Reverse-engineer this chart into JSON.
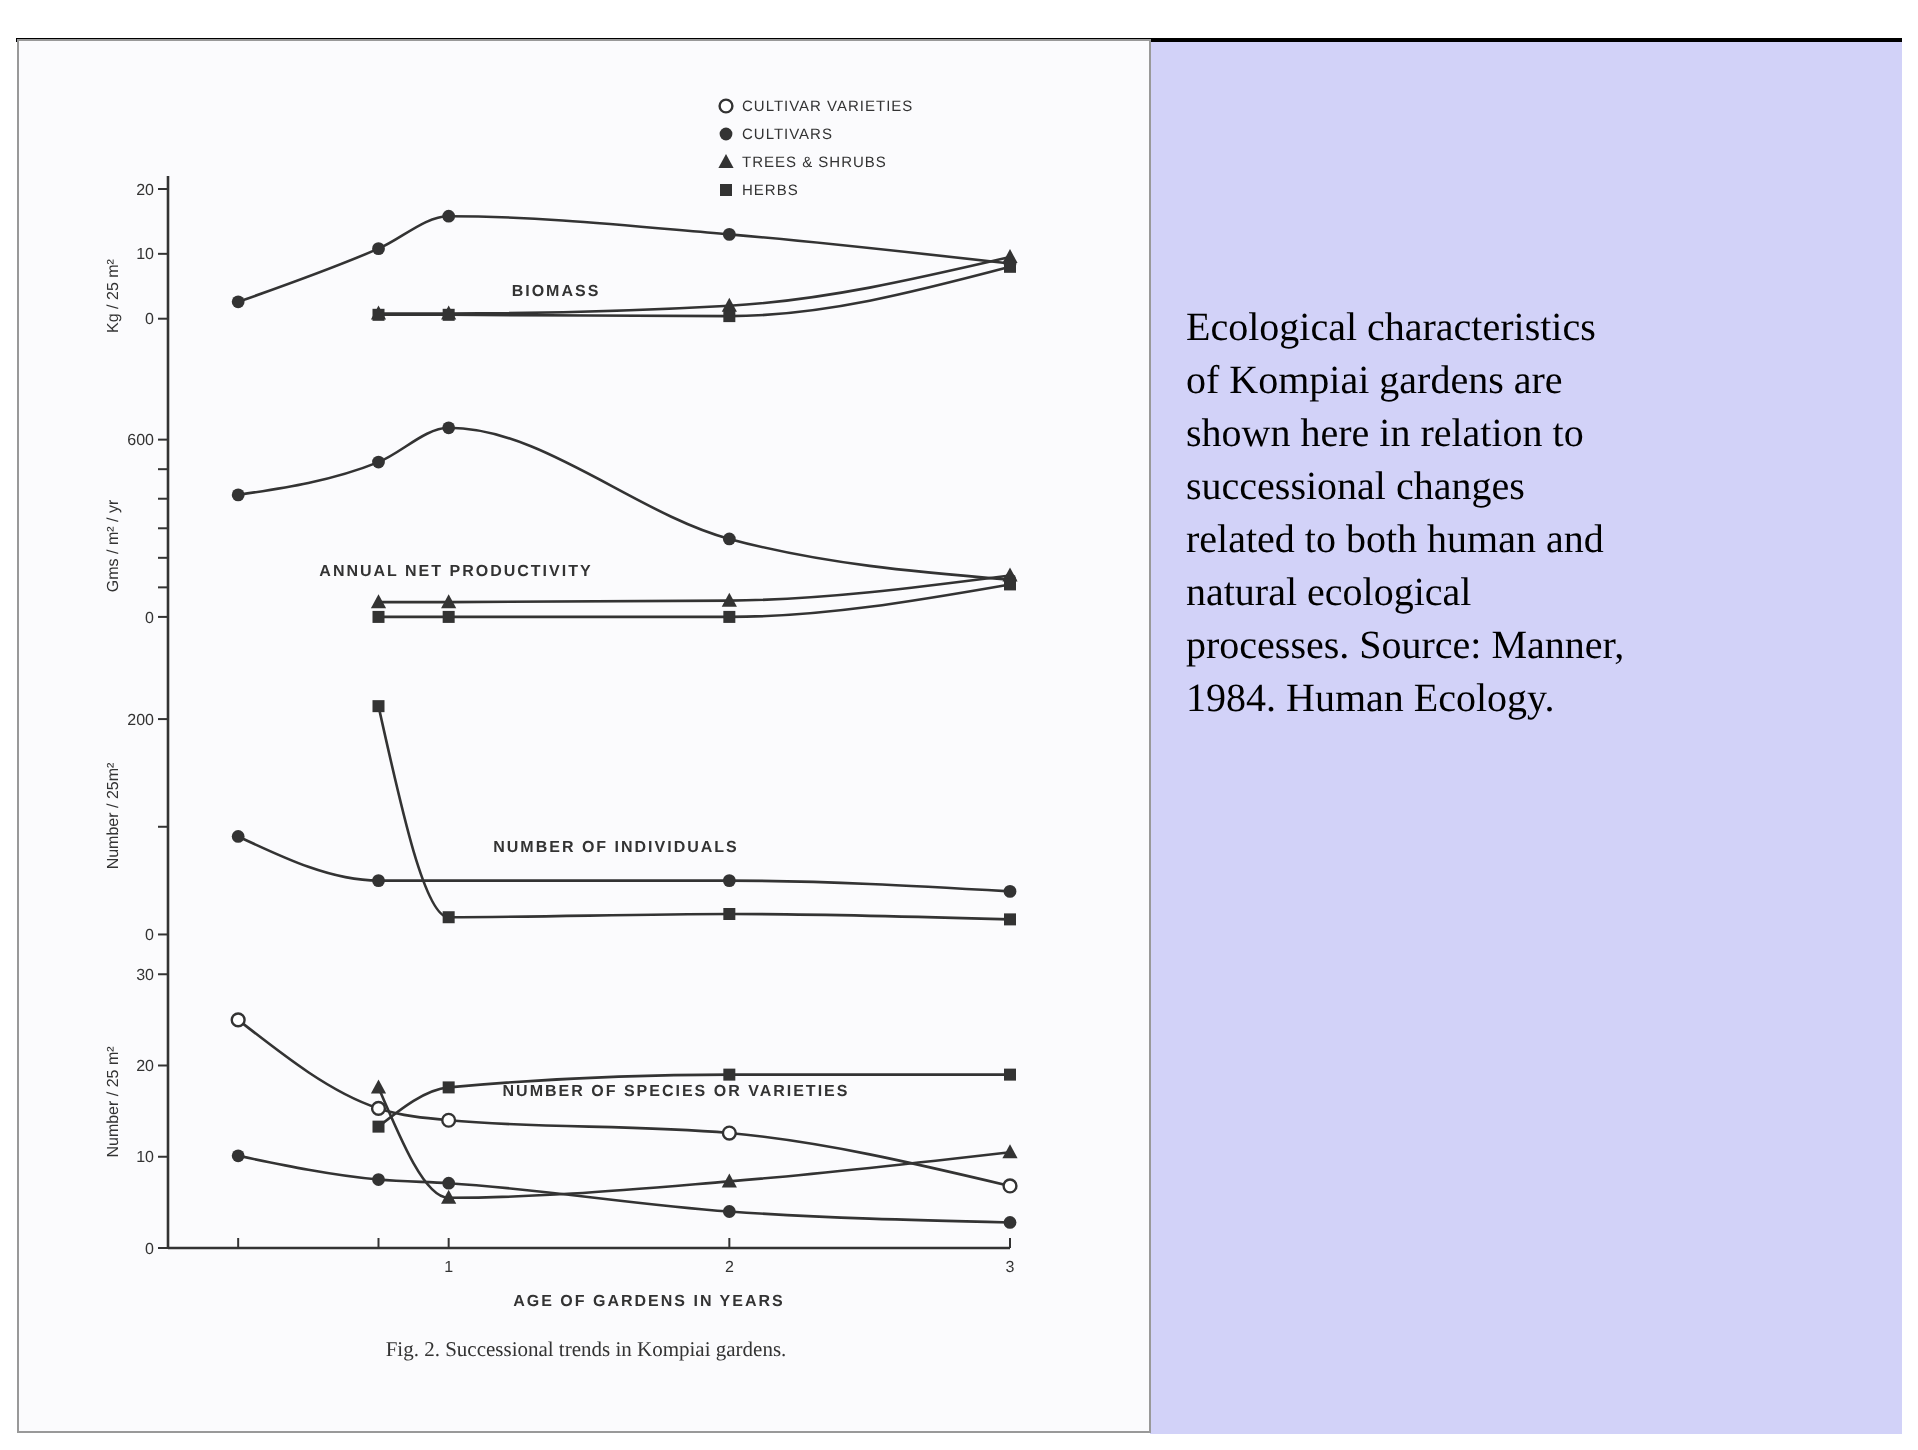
{
  "chart_data": [
    {
      "type": "line",
      "title": "BIOMASS",
      "ylabel": "Kg / 25 m²",
      "xlim": [
        0,
        3
      ],
      "ylim": [
        -15,
        22
      ],
      "yticks": [
        0,
        10,
        20
      ],
      "tick_labels": "y",
      "legend": "top right",
      "grid": false,
      "series": [
        {
          "name": "CULTIVAR VARIETIES",
          "color": "#333333",
          "marker": "open-circle"
        },
        {
          "name": "CULTIVARS",
          "color": "#333333",
          "marker": "circle",
          "x": [
            0.25,
            0.75,
            1,
            2,
            3
          ],
          "values": [
            2.6,
            10.8,
            15.8,
            13,
            8.5
          ]
        },
        {
          "name": "TREES & SHRUBS",
          "color": "#333333",
          "marker": "triangle",
          "x": [
            0.75,
            1,
            2,
            3
          ],
          "values": [
            0.8,
            0.8,
            2,
            9.5
          ]
        },
        {
          "name": "HERBS",
          "color": "#333333",
          "marker": "square",
          "x": [
            0.75,
            1,
            2,
            3
          ],
          "values": [
            0.6,
            0.6,
            0.4,
            8
          ]
        }
      ]
    },
    {
      "type": "line",
      "title": "ANNUAL NET PRODUCTIVITY",
      "ylabel": "Gms / m² / yr",
      "xlim": [
        0,
        3
      ],
      "ylim": [
        -200,
        680
      ],
      "yticks": [
        0,
        {
          "value": 100,
          "label": null
        },
        {
          "value": 200,
          "label": null
        },
        {
          "value": 300,
          "label": null
        },
        {
          "value": 400,
          "label": null
        },
        {
          "value": 500,
          "label": null
        },
        600
      ],
      "tick_labels": "y",
      "series": [
        {
          "color": "#333333",
          "marker": "circle",
          "x": [
            0.25,
            0.75,
            1,
            2,
            3
          ],
          "values": [
            413,
            524,
            640,
            264,
            126
          ]
        },
        {
          "color": "#333333",
          "marker": "triangle",
          "x": [
            0.75,
            1,
            2,
            3
          ],
          "values": [
            50,
            50,
            55,
            140
          ]
        },
        {
          "color": "#333333",
          "marker": "square",
          "x": [
            0.75,
            1,
            2,
            3
          ],
          "values": [
            0,
            0,
            0,
            110
          ]
        }
      ]
    },
    {
      "type": "line",
      "title": "NUMBER OF INDIVIDUALS",
      "ylabel": "Number / 25m²",
      "xlim": [
        0,
        3
      ],
      "ylim": [
        -20,
        240
      ],
      "yticks": [
        0,
        {
          "value": 100,
          "label": null
        },
        200
      ],
      "tick_labels": "y",
      "series": [
        {
          "color": "#333333",
          "marker": "circle",
          "x": [
            0.25,
            0.75,
            2,
            3
          ],
          "values": [
            91,
            50,
            50,
            40
          ]
        },
        {
          "color": "#333333",
          "marker": "square",
          "x": [
            0.75,
            1,
            2,
            3
          ],
          "values": [
            212,
            16,
            19,
            14
          ]
        }
      ]
    },
    {
      "type": "line",
      "title": "NUMBER OF SPECIES OR VARIETIES",
      "ylabel": "Number / 25 m²",
      "xlabel": "AGE OF GARDENS IN YEARS",
      "xlim": [
        0,
        3
      ],
      "xticks": [
        {
          "value": 0.25,
          "label": null
        },
        {
          "value": 0.75,
          "label": null
        },
        1,
        2,
        3
      ],
      "ylim": [
        0,
        32
      ],
      "yticks": [
        0,
        10,
        20,
        30
      ],
      "annotations": [
        "Fig. 2. Successional trends in Kompiai gardens.",
        "Ecological characteristics of Kompiai gardens are shown here in relation to successional changes related to both human and natural ecological processes. Source: Manner, 1984.  Human Ecology."
      ],
      "series": [
        {
          "color": "#333333",
          "marker": "open-circle",
          "x": [
            0.25,
            0.75,
            1,
            2,
            3
          ],
          "values": [
            25,
            15.3,
            14,
            12.6,
            6.8
          ]
        },
        {
          "color": "#333333",
          "marker": "circle",
          "x": [
            0.25,
            0.75,
            1,
            2,
            3
          ],
          "values": [
            10.1,
            7.5,
            7.1,
            4,
            2.8
          ]
        },
        {
          "color": "#333333",
          "marker": "triangle",
          "x": [
            0.75,
            1,
            2,
            3
          ],
          "values": [
            17.6,
            5.5,
            7.3,
            10.5
          ]
        },
        {
          "color": "#333333",
          "marker": "square",
          "x": [
            0.75,
            1,
            2,
            3
          ],
          "values": [
            13.3,
            17.6,
            19,
            19
          ]
        }
      ]
    }
  ]
}
